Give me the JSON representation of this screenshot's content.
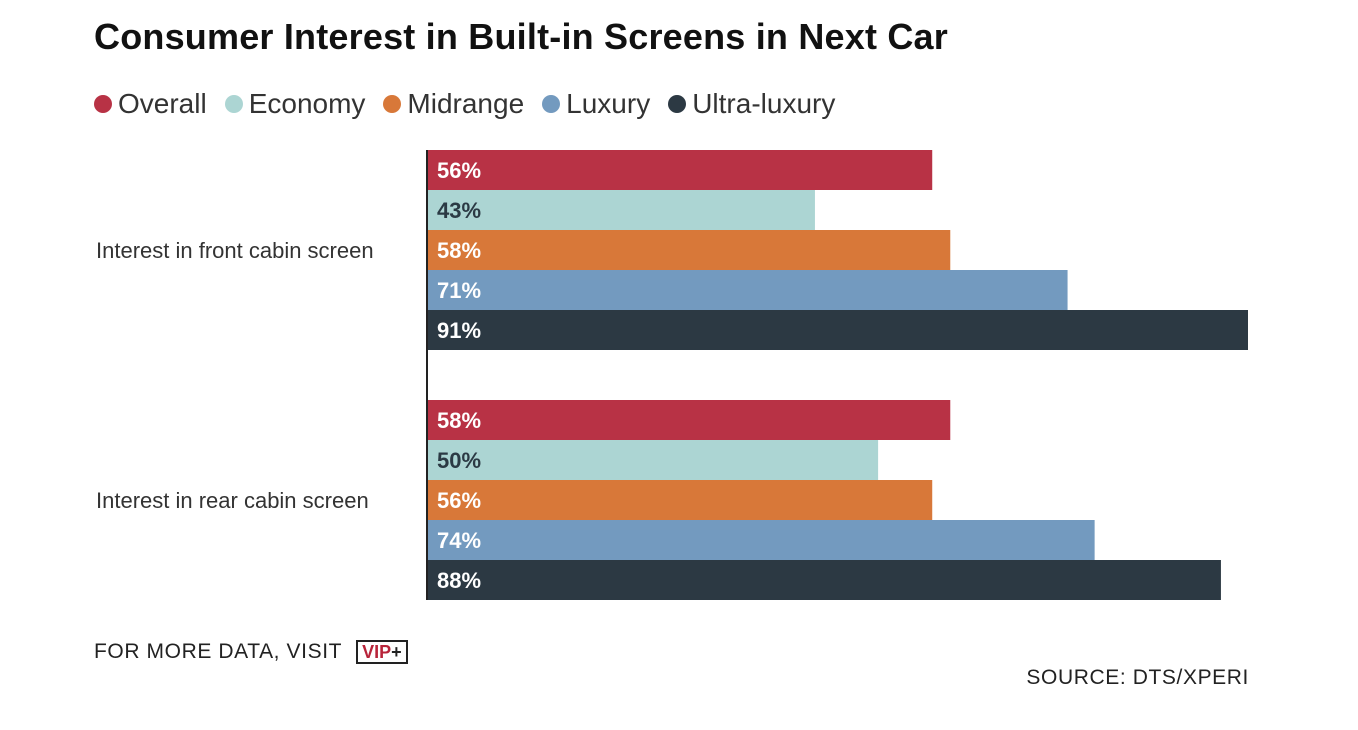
{
  "chart_data": {
    "type": "bar",
    "orientation": "horizontal",
    "title": "Consumer Interest in Built-in Screens in Next Car",
    "categories": [
      "Interest in front cabin screen",
      "Interest in rear cabin screen"
    ],
    "series": [
      {
        "name": "Overall",
        "color": "#b83245",
        "label_color": "#ffffff",
        "values": [
          56,
          58
        ]
      },
      {
        "name": "Economy",
        "color": "#acd5d3",
        "label_color": "#2b3a44",
        "values": [
          43,
          50
        ]
      },
      {
        "name": "Midrange",
        "color": "#d87839",
        "label_color": "#ffffff",
        "values": [
          58,
          56
        ]
      },
      {
        "name": "Luxury",
        "color": "#739abf",
        "label_color": "#ffffff",
        "values": [
          71,
          74
        ]
      },
      {
        "name": "Ultra-luxury",
        "color": "#2c3943",
        "label_color": "#ffffff",
        "values": [
          91,
          88
        ]
      }
    ],
    "value_suffix": "%",
    "xlim": [
      0,
      91
    ],
    "grid": false,
    "legend_position": "top-left"
  },
  "footer": {
    "more_data_text": "FOR MORE DATA, VISIT",
    "badge_vip": "VIP",
    "badge_plus": "+",
    "source": "SOURCE: DTS/XPERI"
  }
}
